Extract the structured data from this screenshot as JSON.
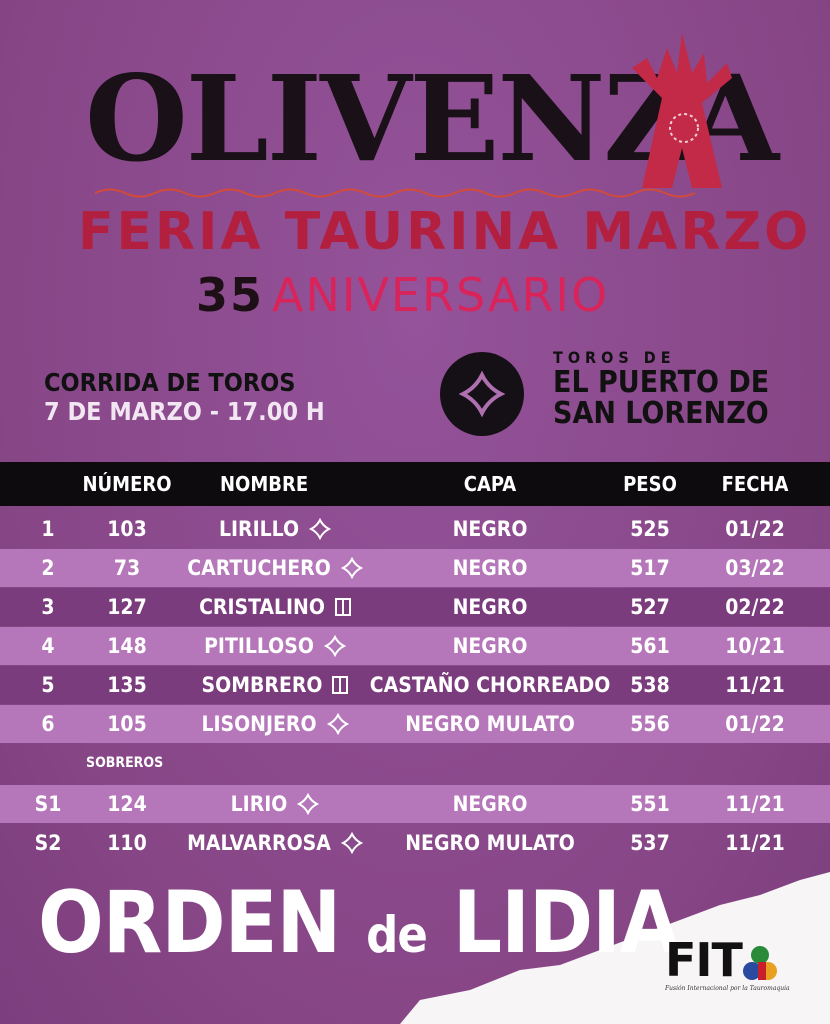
{
  "header": {
    "logo_text": "OLIVENZA",
    "title": "FERIA TAURINA MARZO",
    "anniversary_number": "35",
    "anniversary_text": "ANIVERSARIO"
  },
  "event": {
    "line1": "CORRIDA DE TOROS",
    "line2": "7 DE MARZO - 17.00 H"
  },
  "ganaderia": {
    "prefix": "TOROS DE",
    "name_line1": "EL PUERTO DE",
    "name_line2": "SAN LORENZO"
  },
  "table": {
    "headers": [
      "",
      "NÚMERO",
      "NOMBRE",
      "CAPA",
      "PESO",
      "FECHA"
    ],
    "rows": [
      {
        "idx": "1",
        "numero": "103",
        "nombre": "LIRILLO",
        "icon": "cross-brand-icon",
        "capa": "NEGRO",
        "peso": "525",
        "fecha": "01/22"
      },
      {
        "idx": "2",
        "numero": "73",
        "nombre": "CARTUCHERO",
        "icon": "cross-brand-icon",
        "capa": "NEGRO",
        "peso": "517",
        "fecha": "03/22"
      },
      {
        "idx": "3",
        "numero": "127",
        "nombre": "CRISTALINO",
        "icon": "square-brand-icon",
        "capa": "NEGRO",
        "peso": "527",
        "fecha": "02/22"
      },
      {
        "idx": "4",
        "numero": "148",
        "nombre": "PITILLOSO",
        "icon": "cross-brand-icon",
        "capa": "NEGRO",
        "peso": "561",
        "fecha": "10/21"
      },
      {
        "idx": "5",
        "numero": "135",
        "nombre": "SOMBRERO",
        "icon": "square-brand-icon",
        "capa": "CASTAÑO CHORREADO",
        "peso": "538",
        "fecha": "11/21"
      },
      {
        "idx": "6",
        "numero": "105",
        "nombre": "LISONJERO",
        "icon": "cross-brand-icon",
        "capa": "NEGRO MULATO",
        "peso": "556",
        "fecha": "01/22"
      }
    ],
    "sobreros_label": "SOBREROS",
    "sobreros": [
      {
        "idx": "S1",
        "numero": "124",
        "nombre": "LIRIO",
        "icon": "cross-brand-icon",
        "capa": "NEGRO",
        "peso": "551",
        "fecha": "11/21"
      },
      {
        "idx": "S2",
        "numero": "110",
        "nombre": "MALVARROSA",
        "icon": "cross-brand-icon",
        "capa": "NEGRO MULATO",
        "peso": "537",
        "fecha": "11/21"
      }
    ]
  },
  "footer": {
    "title_a": "ORDEN ",
    "title_b": "de",
    "title_c": " LIDIA",
    "sponsor": "FIT",
    "sponsor_tagline": "Fusión Internacional por la Tauromaquia"
  },
  "colors": {
    "background": "#8c4b8d",
    "row_light": "#b577b9",
    "row_dark": "#7b3c7d",
    "header_bar": "#0d0b0d",
    "accent_red": "#b3203f"
  }
}
